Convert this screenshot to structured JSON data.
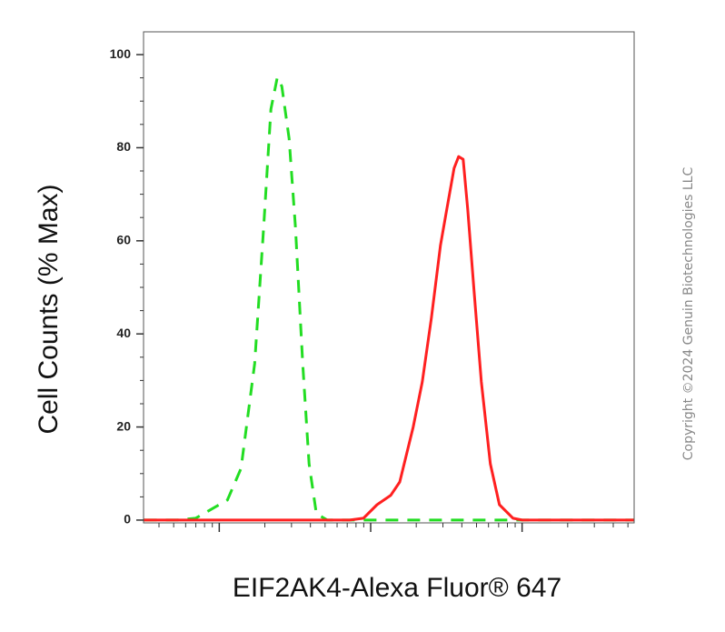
{
  "chart_data": {
    "type": "line",
    "xlabel": "EIF2AK4-Alexa Fluor® 647",
    "ylabel": "Cell Counts (% Max)",
    "watermark": "Copyright ©2024 Genuin Biotechnologies LLC",
    "xlim": [
      0.5,
      3.74
    ],
    "xticks": [
      1,
      2,
      3
    ],
    "ylim": [
      -0.6,
      104.9
    ],
    "yticks": [
      0,
      20,
      40,
      60,
      80,
      100
    ],
    "series": [
      {
        "color": "#22dd22",
        "dash": true,
        "x": [
          0.503,
          0.725,
          0.844,
          1.054,
          1.144,
          1.234,
          1.293,
          1.341,
          1.383,
          1.413,
          1.461,
          1.503,
          1.551,
          1.593,
          1.641,
          1.713,
          3.737
        ],
        "values": [
          0,
          0,
          0.4,
          4.3,
          11.1,
          33.6,
          62.9,
          88.3,
          95.1,
          93.2,
          82,
          62.9,
          33.6,
          12.1,
          1.4,
          0,
          0
        ]
      },
      {
        "color": "#ff2020",
        "dash": false,
        "x": [
          0.503,
          1.862,
          1.952,
          2.042,
          2.132,
          2.192,
          2.281,
          2.341,
          2.401,
          2.461,
          2.503,
          2.551,
          2.581,
          2.611,
          2.641,
          2.683,
          2.731,
          2.79,
          2.85,
          2.94,
          3.0,
          3.737
        ],
        "values": [
          0,
          0,
          0.4,
          3.3,
          5.3,
          8.2,
          20,
          29.7,
          43.4,
          59,
          66.8,
          75.6,
          78.1,
          77.5,
          66.8,
          49.2,
          29.7,
          12.1,
          3.3,
          0.4,
          0,
          0
        ]
      }
    ]
  }
}
